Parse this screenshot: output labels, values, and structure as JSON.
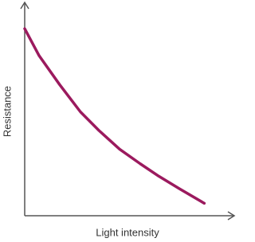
{
  "chart_data": {
    "type": "line",
    "x_label": "Light intensity",
    "y_label": "Resistance",
    "x": [
      0,
      7,
      17,
      27,
      36,
      46,
      56,
      65,
      75,
      87
    ],
    "series": [
      {
        "color": "#9b1a5e",
        "values": [
          90,
          77,
          63,
          50,
          41,
          32,
          25,
          19,
          13,
          6
        ]
      }
    ],
    "xlim": [
      0,
      100
    ],
    "ylim": [
      0,
      100
    ]
  }
}
